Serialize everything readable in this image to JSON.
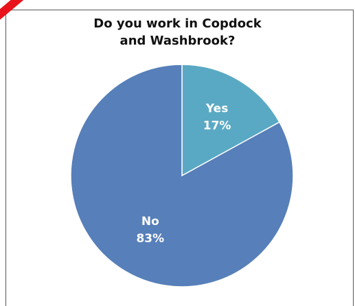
{
  "chart_data": {
    "type": "pie",
    "title_lines": [
      "Do you work in Copdock",
      "and Washbrook?"
    ],
    "slices": [
      {
        "label": "Yes",
        "value": 17,
        "value_text": "17%",
        "color": "#5aa9c4"
      },
      {
        "label": "No",
        "value": 83,
        "value_text": "83%",
        "color": "#577fb9"
      }
    ],
    "start_angle_deg": 0,
    "direction": "clockwise",
    "legend": "none"
  },
  "colors": {
    "slice_border": "#ffffff",
    "frame": "#555555",
    "corner_mark": "#e8131b"
  }
}
